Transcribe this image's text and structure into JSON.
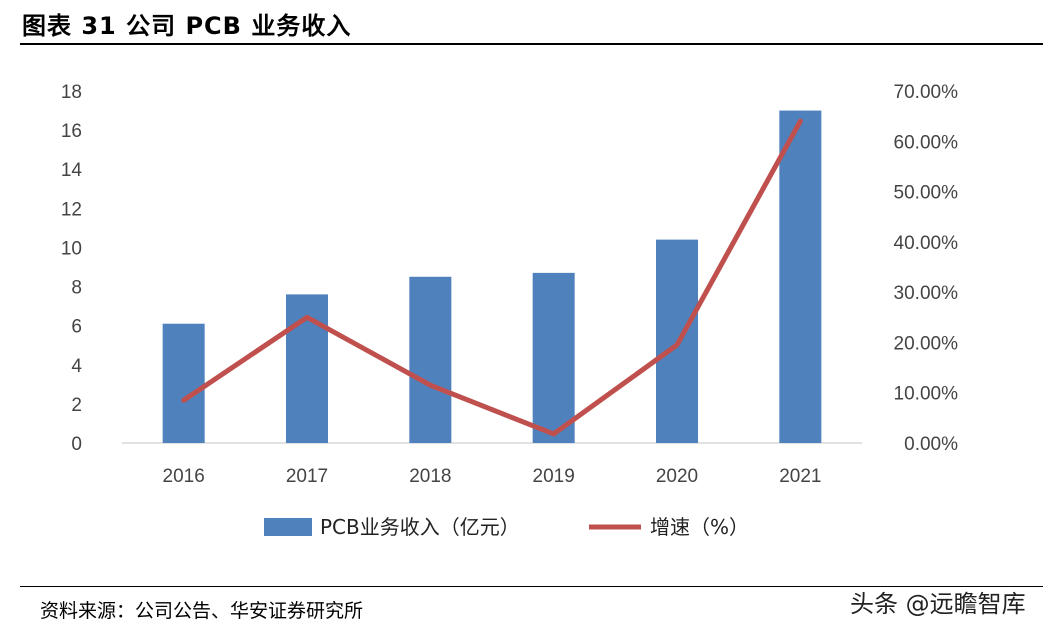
{
  "header": {
    "title": "图表 31  公司 PCB 业务收入"
  },
  "footer": {
    "source": "资料来源：公司公告、华安证券研究所",
    "watermark": "头条 @远瞻智库"
  },
  "chart_data": {
    "type": "bar+line",
    "categories": [
      "2016",
      "2017",
      "2018",
      "2019",
      "2020",
      "2021"
    ],
    "series": [
      {
        "name": "PCB业务收入（亿元）",
        "type": "bar",
        "axis": "left",
        "color": "#4f81bd",
        "values": [
          6.1,
          7.6,
          8.5,
          8.7,
          10.4,
          17.0
        ]
      },
      {
        "name": "增速（%）",
        "type": "line",
        "axis": "right",
        "color": "#c0504d",
        "values": [
          8.5,
          25.0,
          11.5,
          1.8,
          19.5,
          64.0
        ]
      }
    ],
    "y_left": {
      "min": 0,
      "max": 18,
      "ticks": [
        "0",
        "2",
        "4",
        "6",
        "8",
        "10",
        "12",
        "14",
        "16",
        "18"
      ]
    },
    "y_right": {
      "min": 0,
      "max": 70,
      "ticks": [
        "0.00%",
        "10.00%",
        "20.00%",
        "30.00%",
        "40.00%",
        "50.00%",
        "60.00%",
        "70.00%"
      ]
    },
    "grid": false,
    "legend_position": "bottom"
  }
}
